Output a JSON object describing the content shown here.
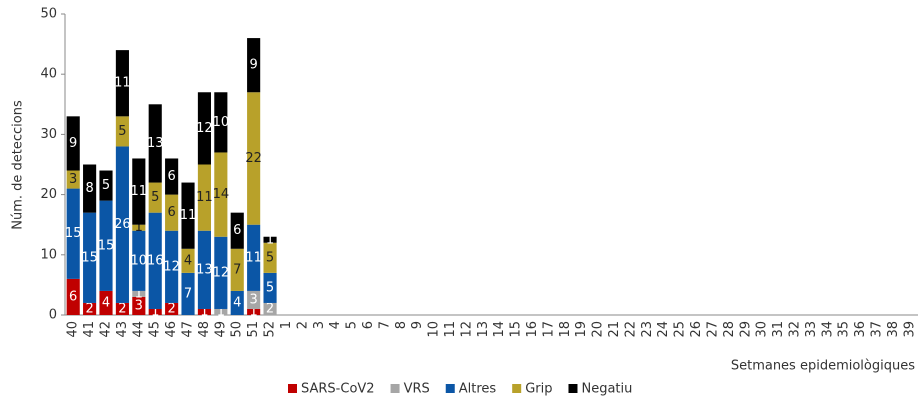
{
  "chart_data": {
    "type": "stacked-bar",
    "y_label": "Núm. de deteccions",
    "x_label": "Setmanes epidemiològiques",
    "categories": [
      "40",
      "41",
      "42",
      "43",
      "44",
      "45",
      "46",
      "47",
      "48",
      "49",
      "50",
      "51",
      "52",
      "1",
      "2",
      "3",
      "4",
      "5",
      "6",
      "7",
      "8",
      "9",
      "10",
      "11",
      "12",
      "13",
      "14",
      "15",
      "16",
      "17",
      "18",
      "19",
      "20",
      "21",
      "22",
      "23",
      "24",
      "25",
      "26",
      "27",
      "28",
      "29",
      "30",
      "31",
      "32",
      "33",
      "34",
      "35",
      "36",
      "37",
      "38",
      "39"
    ],
    "ylim": [
      0,
      50
    ],
    "yticks": [
      0,
      10,
      20,
      30,
      40,
      50
    ],
    "series": [
      {
        "name": "SARS-CoV2",
        "color": "#c00000",
        "values": [
          6,
          2,
          4,
          2,
          3,
          1,
          2,
          0,
          1,
          0,
          0,
          1,
          0,
          null,
          null,
          null,
          null,
          null,
          null,
          null,
          null,
          null,
          null,
          null,
          null,
          null,
          null,
          null,
          null,
          null,
          null,
          null,
          null,
          null,
          null,
          null,
          null,
          null,
          null,
          null,
          null,
          null,
          null,
          null,
          null,
          null,
          null,
          null,
          null,
          null,
          null,
          null
        ]
      },
      {
        "name": "VRS",
        "color": "#a6a6a6",
        "values": [
          0,
          0,
          0,
          0,
          1,
          0,
          0,
          0,
          0,
          1,
          0,
          3,
          2,
          null,
          null,
          null,
          null,
          null,
          null,
          null,
          null,
          null,
          null,
          null,
          null,
          null,
          null,
          null,
          null,
          null,
          null,
          null,
          null,
          null,
          null,
          null,
          null,
          null,
          null,
          null,
          null,
          null,
          null,
          null,
          null,
          null,
          null,
          null,
          null,
          null,
          null,
          null
        ]
      },
      {
        "name": "Altres",
        "color": "#0b56a6",
        "values": [
          15,
          15,
          15,
          26,
          10,
          16,
          12,
          7,
          13,
          12,
          4,
          11,
          5,
          null,
          null,
          null,
          null,
          null,
          null,
          null,
          null,
          null,
          null,
          null,
          null,
          null,
          null,
          null,
          null,
          null,
          null,
          null,
          null,
          null,
          null,
          null,
          null,
          null,
          null,
          null,
          null,
          null,
          null,
          null,
          null,
          null,
          null,
          null,
          null,
          null,
          null,
          null
        ]
      },
      {
        "name": "Grip",
        "color": "#b8a12a",
        "values": [
          3,
          0,
          0,
          5,
          1,
          5,
          6,
          4,
          11,
          14,
          7,
          22,
          5,
          null,
          null,
          null,
          null,
          null,
          null,
          null,
          null,
          null,
          null,
          null,
          null,
          null,
          null,
          null,
          null,
          null,
          null,
          null,
          null,
          null,
          null,
          null,
          null,
          null,
          null,
          null,
          null,
          null,
          null,
          null,
          null,
          null,
          null,
          null,
          null,
          null,
          null,
          null
        ]
      },
      {
        "name": "Negatiu",
        "color": "#000000",
        "values": [
          9,
          8,
          5,
          11,
          11,
          13,
          6,
          11,
          12,
          10,
          6,
          9,
          1,
          null,
          null,
          null,
          null,
          null,
          null,
          null,
          null,
          null,
          null,
          null,
          null,
          null,
          null,
          null,
          null,
          null,
          null,
          null,
          null,
          null,
          null,
          null,
          null,
          null,
          null,
          null,
          null,
          null,
          null,
          null,
          null,
          null,
          null,
          null,
          null,
          null,
          null,
          null
        ]
      }
    ]
  }
}
